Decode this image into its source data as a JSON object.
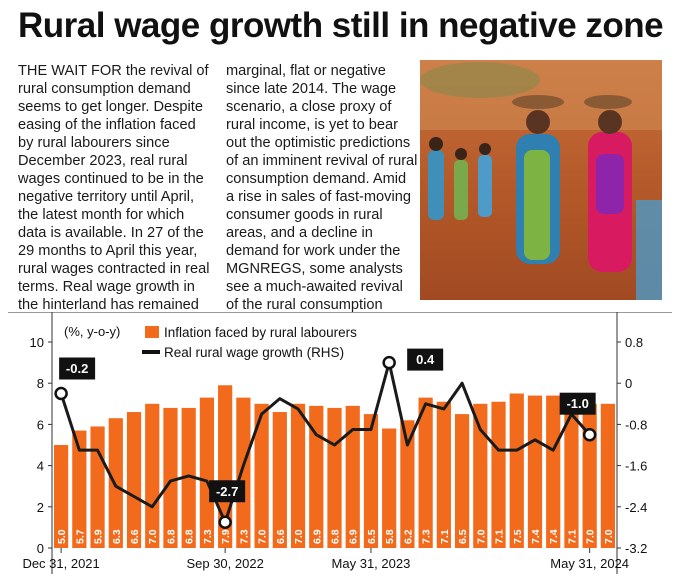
{
  "headline": "Rural wage growth still in negative zone",
  "body_col1": "THE WAIT FOR the revival of rural consumption demand seems to get longer. Despite easing of the inflation faced by rural labourers since December 2023, real rural wages continued to be in the negative territory until April, the latest month for which data is available. In 27 of the 29 months to April this year, rural wages contracted in real terms. Real wage growth in the hinterland has remained",
  "body_col2": "marginal, flat or negative since late 2014. The wage scenario, a close proxy of rural income, is yet to bear out the optimistic predictions of an imminent revival of rural consumption demand. Amid a rise in sales of fast-moving consumer goods in rural areas, and a decline in demand for work under the MGNREGS, some analysts see a much-awaited revival of the rural consumption demand.",
  "colors": {
    "bar": "#f26b1d",
    "line": "#1a1a1a",
    "callout_bg": "#111111",
    "callout_text": "#ffffff"
  },
  "chart_data": {
    "type": "bar+line",
    "unit_note": "(%, y-o-y)",
    "x_tick_labels": [
      "Dec 31, 2021",
      "Sep 30, 2022",
      "May 31, 2023",
      "May 31, 2024"
    ],
    "left_axis": {
      "ylim": [
        0,
        10
      ],
      "ticks": [
        "0",
        "2",
        "4",
        "6",
        "8",
        "10"
      ]
    },
    "right_axis": {
      "ylim": [
        -3.2,
        0.8
      ],
      "ticks": [
        "-3.2",
        "-2.4",
        "-1.6",
        "-0.8",
        "0",
        "0.8"
      ]
    },
    "bar_series": {
      "name": "Inflation faced by rural labourers",
      "values": [
        5.0,
        5.7,
        5.9,
        6.3,
        6.6,
        7.0,
        6.8,
        6.8,
        7.3,
        7.9,
        7.3,
        7.0,
        6.6,
        7.0,
        6.9,
        6.8,
        6.9,
        6.5,
        5.8,
        6.2,
        7.3,
        7.1,
        6.5,
        7.0,
        7.1,
        7.5,
        7.4,
        7.4,
        7.1,
        7.0,
        7.0
      ],
      "labels": [
        "5.0",
        "5.7",
        "5.9",
        "6.3",
        "6.6",
        "7.0",
        "6.8",
        "6.8",
        "7.3",
        "7.9",
        "7.3",
        "7.0",
        "6.6",
        "7.0",
        "6.9",
        "6.8",
        "6.9",
        "6.5",
        "5.8",
        "6.2",
        "7.3",
        "7.1",
        "6.5",
        "7.0",
        "7.1",
        "7.5",
        "7.4",
        "7.4",
        "7.1",
        "7.0",
        "7.0"
      ]
    },
    "line_series": {
      "name": "Real rural wage growth (RHS)",
      "values": [
        -0.2,
        -1.3,
        -1.3,
        -2.0,
        -2.2,
        -2.4,
        -1.9,
        -1.8,
        -1.9,
        -2.7,
        -1.6,
        -0.6,
        -0.3,
        -0.5,
        -1.0,
        -1.2,
        -0.9,
        -0.9,
        0.4,
        -1.2,
        -0.4,
        -0.5,
        0.0,
        -0.9,
        -1.3,
        -1.3,
        -1.1,
        -1.3,
        -0.6,
        -1.0
      ],
      "x_index_offset": 0.5,
      "callouts": [
        {
          "index": 0,
          "label": "-0.2"
        },
        {
          "index": 9,
          "label": "-2.7"
        },
        {
          "index": 18,
          "label": "0.4"
        },
        {
          "index": 29,
          "label": "-1.0"
        }
      ]
    },
    "x_tick_bar_index": [
      0,
      9,
      17,
      29
    ],
    "legend_position": "top-left",
    "grid": false
  }
}
